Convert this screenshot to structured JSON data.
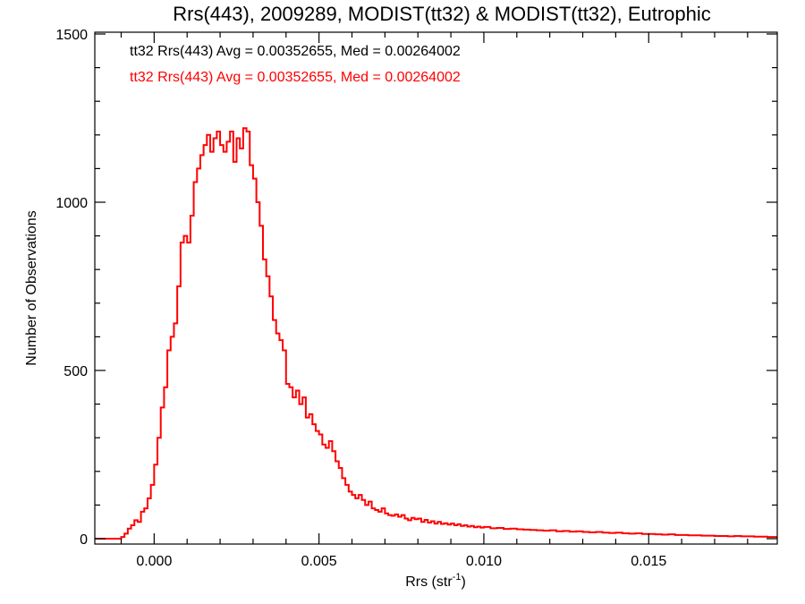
{
  "chart_data": {
    "type": "histogram",
    "title": "Rrs(443), 2009289, MODIST(tt32) & MODIST(tt32), Eutrophic",
    "xlabel": "Rrs (str",
    "xlabel_sup": "-1",
    "xlabel_close": ")",
    "ylabel": "Number of Observations",
    "xlim": [
      -0.0018,
      0.0189
    ],
    "ylim": [
      0,
      1500
    ],
    "x_ticks": [
      0.0,
      0.005,
      0.01,
      0.015
    ],
    "x_tick_labels": [
      "0.000",
      "0.005",
      "0.010",
      "0.015"
    ],
    "y_ticks": [
      0,
      500,
      1000,
      1500
    ],
    "y_tick_labels": [
      "0",
      "500",
      "1000",
      "1500"
    ],
    "grid": false,
    "legend_position": "top-left",
    "annotations": [
      {
        "text": "tt32 Rrs(443) Avg = 0.00352655, Med = 0.00264002",
        "color": "#000000"
      },
      {
        "text": "tt32 Rrs(443) Avg = 0.00352655, Med = 0.00264002",
        "color": "#ff0000"
      }
    ],
    "series": [
      {
        "color": "#ff0000",
        "bin_width": 0.0001,
        "points": [
          [
            -0.0018,
            0
          ],
          [
            -0.0012,
            0
          ],
          [
            -0.001,
            5
          ],
          [
            -0.0009,
            15
          ],
          [
            -0.0008,
            30
          ],
          [
            -0.0007,
            40
          ],
          [
            -0.0006,
            55
          ],
          [
            -0.0005,
            50
          ],
          [
            -0.0004,
            80
          ],
          [
            -0.0003,
            90
          ],
          [
            -0.0002,
            120
          ],
          [
            -0.0001,
            160
          ],
          [
            0.0,
            220
          ],
          [
            0.0001,
            300
          ],
          [
            0.0002,
            390
          ],
          [
            0.0003,
            450
          ],
          [
            0.0004,
            560
          ],
          [
            0.0005,
            600
          ],
          [
            0.0006,
            640
          ],
          [
            0.0007,
            750
          ],
          [
            0.0008,
            880
          ],
          [
            0.0009,
            900
          ],
          [
            0.001,
            880
          ],
          [
            0.0011,
            960
          ],
          [
            0.0012,
            1060
          ],
          [
            0.0013,
            1100
          ],
          [
            0.0014,
            1140
          ],
          [
            0.0015,
            1170
          ],
          [
            0.0016,
            1200
          ],
          [
            0.0017,
            1150
          ],
          [
            0.0018,
            1190
          ],
          [
            0.0019,
            1210
          ],
          [
            0.002,
            1170
          ],
          [
            0.0021,
            1150
          ],
          [
            0.0022,
            1180
          ],
          [
            0.0023,
            1210
          ],
          [
            0.0024,
            1120
          ],
          [
            0.0025,
            1190
          ],
          [
            0.0026,
            1160
          ],
          [
            0.0027,
            1220
          ],
          [
            0.0028,
            1210
          ],
          [
            0.0029,
            1110
          ],
          [
            0.003,
            1070
          ],
          [
            0.0031,
            1000
          ],
          [
            0.0032,
            930
          ],
          [
            0.0033,
            830
          ],
          [
            0.0034,
            780
          ],
          [
            0.0035,
            720
          ],
          [
            0.0036,
            650
          ],
          [
            0.0037,
            610
          ],
          [
            0.0038,
            590
          ],
          [
            0.0039,
            560
          ],
          [
            0.004,
            460
          ],
          [
            0.0041,
            450
          ],
          [
            0.0042,
            420
          ],
          [
            0.0043,
            440
          ],
          [
            0.0044,
            400
          ],
          [
            0.0045,
            420
          ],
          [
            0.0046,
            360
          ],
          [
            0.0047,
            370
          ],
          [
            0.0048,
            340
          ],
          [
            0.0049,
            320
          ],
          [
            0.005,
            310
          ],
          [
            0.0051,
            280
          ],
          [
            0.0052,
            270
          ],
          [
            0.0053,
            290
          ],
          [
            0.0054,
            260
          ],
          [
            0.0055,
            230
          ],
          [
            0.0056,
            210
          ],
          [
            0.0057,
            180
          ],
          [
            0.0058,
            160
          ],
          [
            0.0059,
            140
          ],
          [
            0.006,
            130
          ],
          [
            0.0061,
            120
          ],
          [
            0.0062,
            130
          ],
          [
            0.0063,
            115
          ],
          [
            0.0064,
            100
          ],
          [
            0.0065,
            110
          ],
          [
            0.0066,
            90
          ],
          [
            0.0067,
            85
          ],
          [
            0.0068,
            80
          ],
          [
            0.0069,
            90
          ],
          [
            0.007,
            75
          ],
          [
            0.0071,
            70
          ],
          [
            0.0072,
            68
          ],
          [
            0.0073,
            72
          ],
          [
            0.0074,
            65
          ],
          [
            0.0075,
            70
          ],
          [
            0.0076,
            60
          ],
          [
            0.0077,
            55
          ],
          [
            0.0078,
            62
          ],
          [
            0.0079,
            58
          ],
          [
            0.008,
            60
          ],
          [
            0.0081,
            50
          ],
          [
            0.0082,
            56
          ],
          [
            0.0083,
            48
          ],
          [
            0.0084,
            52
          ],
          [
            0.0085,
            45
          ],
          [
            0.0086,
            50
          ],
          [
            0.0087,
            44
          ],
          [
            0.0088,
            46
          ],
          [
            0.0089,
            42
          ],
          [
            0.009,
            45
          ],
          [
            0.0091,
            40
          ],
          [
            0.0092,
            43
          ],
          [
            0.0093,
            38
          ],
          [
            0.0094,
            40
          ],
          [
            0.0095,
            36
          ],
          [
            0.0096,
            38
          ],
          [
            0.0097,
            34
          ],
          [
            0.0098,
            36
          ],
          [
            0.0099,
            33
          ],
          [
            0.01,
            35
          ],
          [
            0.0102,
            31
          ],
          [
            0.0104,
            32
          ],
          [
            0.0106,
            29
          ],
          [
            0.0108,
            30
          ],
          [
            0.011,
            28
          ],
          [
            0.0112,
            27
          ],
          [
            0.0114,
            26
          ],
          [
            0.0116,
            25
          ],
          [
            0.0118,
            24
          ],
          [
            0.012,
            25
          ],
          [
            0.0122,
            22
          ],
          [
            0.0124,
            23
          ],
          [
            0.0126,
            21
          ],
          [
            0.0128,
            22
          ],
          [
            0.013,
            20
          ],
          [
            0.0132,
            19
          ],
          [
            0.0134,
            20
          ],
          [
            0.0136,
            18
          ],
          [
            0.0138,
            17
          ],
          [
            0.014,
            18
          ],
          [
            0.0142,
            16
          ],
          [
            0.0144,
            15
          ],
          [
            0.0146,
            16
          ],
          [
            0.0148,
            14
          ],
          [
            0.015,
            14
          ],
          [
            0.0152,
            13
          ],
          [
            0.0154,
            12
          ],
          [
            0.0156,
            13
          ],
          [
            0.0158,
            11
          ],
          [
            0.016,
            11
          ],
          [
            0.0162,
            10
          ],
          [
            0.0164,
            10
          ],
          [
            0.0166,
            9
          ],
          [
            0.0168,
            9
          ],
          [
            0.017,
            8
          ],
          [
            0.0172,
            8
          ],
          [
            0.0174,
            7
          ],
          [
            0.0176,
            8
          ],
          [
            0.0178,
            7
          ],
          [
            0.018,
            7
          ],
          [
            0.0182,
            6
          ],
          [
            0.0184,
            6
          ],
          [
            0.0186,
            5
          ],
          [
            0.0188,
            5
          ]
        ]
      }
    ]
  }
}
